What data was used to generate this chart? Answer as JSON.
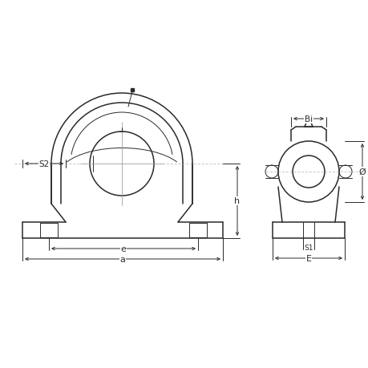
{
  "bg_color": "#ffffff",
  "line_color": "#2a2a2a",
  "dim_color": "#2a2a2a",
  "fig_width": 4.6,
  "fig_height": 4.6,
  "dpi": 100,
  "labels": {
    "S2": "S2",
    "e": "e",
    "a": "a",
    "h": "h",
    "Bi": "Bi",
    "phi": "Ø",
    "S1": "S1",
    "E": "E"
  },
  "lw_main": 1.1,
  "lw_thin": 0.7,
  "lw_dim": 0.7
}
